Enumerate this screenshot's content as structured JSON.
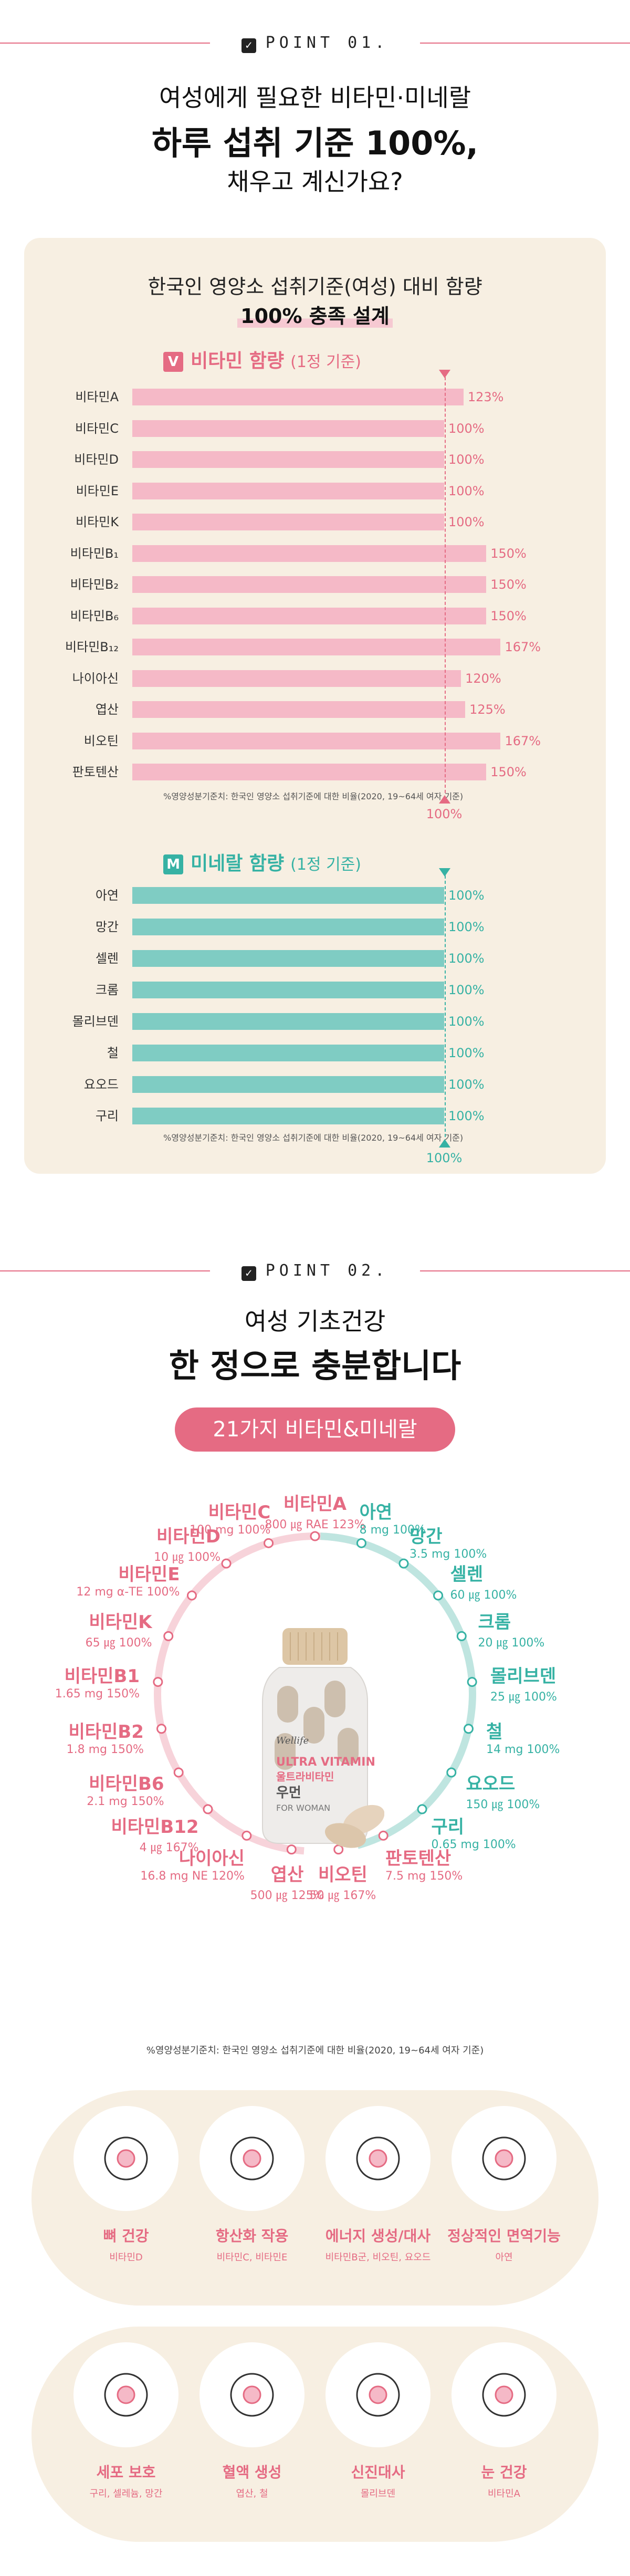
{
  "point1": {
    "label": "POINT 01.",
    "headline_1": "여성에게 필요한 비타민·미네랄",
    "headline_2": "하루 섭취 기준 100%,",
    "headline_3": "채우고 계신가요?"
  },
  "chart_panel": {
    "title": "한국인 영양소 섭취기준(여성) 대비 함량",
    "subtitle": "100% 충족 설계"
  },
  "chart_data": [
    {
      "type": "bar",
      "title": "비타민 함량",
      "badge": "V",
      "basis": "(1정 기준)",
      "categories": [
        "비타민A",
        "비타민C",
        "비타민D",
        "비타민E",
        "비타민K",
        "비타민B₁",
        "비타민B₂",
        "비타민B₆",
        "비타민B₁₂",
        "나이아신",
        "엽산",
        "비오틴",
        "판토텐산"
      ],
      "values": [
        123,
        100,
        100,
        100,
        100,
        150,
        150,
        150,
        167,
        120,
        125,
        167,
        150
      ],
      "value_labels": [
        "123%",
        "100%",
        "100%",
        "100%",
        "100%",
        "150%",
        "150%",
        "150%",
        "167%",
        "120%",
        "125%",
        "167%",
        "150%"
      ],
      "reference": 100,
      "reference_label": "100%",
      "note": "%영양성분기준치: 한국인 영양소 섭취기준에 대한 비율(2020, 19~64세 여자 기준)",
      "color": "#f5b9c7"
    },
    {
      "type": "bar",
      "title": "미네랄 함량",
      "badge": "M",
      "basis": "(1정 기준)",
      "categories": [
        "아연",
        "망간",
        "셀렌",
        "크롬",
        "몰리브덴",
        "철",
        "요오드",
        "구리"
      ],
      "values": [
        100,
        100,
        100,
        100,
        100,
        100,
        100,
        100
      ],
      "value_labels": [
        "100%",
        "100%",
        "100%",
        "100%",
        "100%",
        "100%",
        "100%",
        "100%"
      ],
      "reference": 100,
      "reference_label": "100%",
      "note": "%영양성분기준치: 한국인 영양소 섭취기준에 대한 비율(2020, 19~64세 여자 기준)",
      "color": "#7fccc3"
    }
  ],
  "point2": {
    "label": "POINT 02.",
    "headline_1": "여성 기초건강",
    "headline_2": "한 정으로 충분합니다",
    "pill": "21가지 비타민&미네랄",
    "note": "%영양성분기준치: 한국인 영양소 섭취기준에 대한 비율(2020, 19~64세 여자 기준)",
    "product": {
      "brand": "Wellife",
      "name": "ULTRA VITAMIN",
      "name_ko": "울트라비타민",
      "sub": "우먼",
      "sub_en": "FOR WOMAN"
    },
    "nutrients": [
      {
        "name": "비타민A",
        "detail": "800 ㎍ RAE 123%",
        "color": "pink"
      },
      {
        "name": "아연",
        "detail": "8 mg 100%",
        "color": "teal"
      },
      {
        "name": "망간",
        "detail": "3.5 mg 100%",
        "color": "teal"
      },
      {
        "name": "셀렌",
        "detail": "60 ㎍ 100%",
        "color": "teal"
      },
      {
        "name": "크롬",
        "detail": "20 ㎍ 100%",
        "color": "teal"
      },
      {
        "name": "몰리브덴",
        "detail": "25 ㎍ 100%",
        "color": "teal"
      },
      {
        "name": "철",
        "detail": "14 mg 100%",
        "color": "teal"
      },
      {
        "name": "요오드",
        "detail": "150 ㎍ 100%",
        "color": "teal"
      },
      {
        "name": "구리",
        "detail": "0.65 mg 100%",
        "color": "teal"
      },
      {
        "name": "판토텐산",
        "detail": "7.5 mg 150%",
        "color": "pink"
      },
      {
        "name": "비오틴",
        "detail": "50 ㎍ 167%",
        "color": "pink"
      },
      {
        "name": "엽산",
        "detail": "500 ㎍ 125%",
        "color": "pink"
      },
      {
        "name": "나이아신",
        "detail": "16.8 mg NE 120%",
        "color": "pink"
      },
      {
        "name": "비타민B12",
        "detail": "4 ㎍ 167%",
        "color": "pink"
      },
      {
        "name": "비타민B6",
        "detail": "2.1 mg 150%",
        "color": "pink"
      },
      {
        "name": "비타민B2",
        "detail": "1.8 mg 150%",
        "color": "pink"
      },
      {
        "name": "비타민B1",
        "detail": "1.65 mg 150%",
        "color": "pink"
      },
      {
        "name": "비타민K",
        "detail": "65 ㎍ 100%",
        "color": "pink"
      },
      {
        "name": "비타민E",
        "detail": "12 mg α-TE 100%",
        "color": "pink"
      },
      {
        "name": "비타민D",
        "detail": "10 ㎍ 100%",
        "color": "pink"
      },
      {
        "name": "비타민C",
        "detail": "100 mg 100%",
        "color": "pink"
      }
    ],
    "benefits": [
      {
        "title": "뼈 건강",
        "sub": "비타민D",
        "icon": "knee-joint-icon"
      },
      {
        "title": "항산화 작용",
        "sub": "비타민C, 비타민E",
        "icon": "molecule-icon"
      },
      {
        "title": "에너지 생성/대사",
        "sub": "비타민B군, 비오틴, 요오드",
        "icon": "running-person-icon"
      },
      {
        "title": "정상적인 면역기능",
        "sub": "아연",
        "icon": "virus-shield-icon"
      },
      {
        "title": "세포 보호",
        "sub": "구리, 셀레늄, 망간",
        "icon": "cell-network-icon"
      },
      {
        "title": "혈액 생성",
        "sub": "엽산, 철",
        "icon": "blood-vessel-icon"
      },
      {
        "title": "신진대사",
        "sub": "몰리브덴",
        "icon": "meditation-icon"
      },
      {
        "title": "눈 건강",
        "sub": "비타민A",
        "icon": "eye-icon"
      }
    ]
  },
  "colors": {
    "pink": "#e56b83",
    "teal": "#36b2a4",
    "beige": "#f7efe2"
  }
}
